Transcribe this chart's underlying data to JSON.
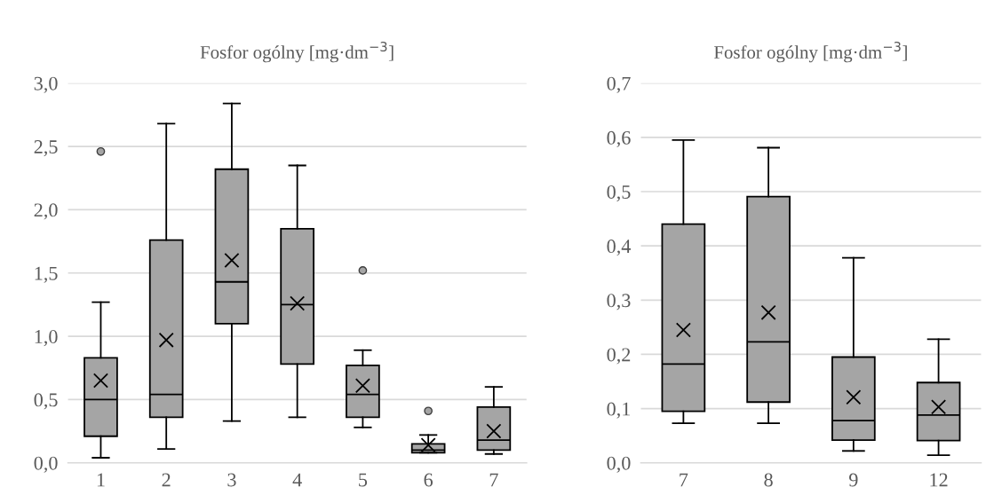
{
  "chart_data": [
    {
      "type": "box",
      "title": "Fosfor ogólny [mg·dm$^{−3}$]",
      "categories": [
        "1",
        "2",
        "3",
        "4",
        "5",
        "6",
        "7"
      ],
      "color": "#a5a5a5",
      "grid": "y",
      "marker": "cross",
      "boxes": [
        {
          "low": 0.04,
          "q1": 0.21,
          "median": 0.5,
          "q3": 0.83,
          "high": 1.27,
          "mean": 0.65,
          "outliers": [
            2.46
          ]
        },
        {
          "low": 0.11,
          "q1": 0.36,
          "median": 0.54,
          "q3": 1.76,
          "high": 2.68,
          "mean": 0.97
        },
        {
          "low": 0.33,
          "q1": 1.1,
          "median": 1.43,
          "q3": 2.32,
          "high": 2.84,
          "mean": 1.6
        },
        {
          "low": 0.36,
          "q1": 0.78,
          "median": 1.25,
          "q3": 1.85,
          "high": 2.35,
          "mean": 1.26
        },
        {
          "low": 0.28,
          "q1": 0.36,
          "median": 0.54,
          "q3": 0.77,
          "high": 0.89,
          "mean": 0.61,
          "outliers": [
            1.52
          ]
        },
        {
          "low": 0.08,
          "q1": 0.08,
          "median": 0.1,
          "q3": 0.15,
          "high": 0.22,
          "mean": 0.14,
          "outliers": [
            0.41
          ]
        },
        {
          "low": 0.07,
          "q1": 0.1,
          "median": 0.18,
          "q3": 0.44,
          "high": 0.6,
          "mean": 0.25
        }
      ],
      "ylim": [
        0,
        3
      ],
      "yticks": [
        {
          "value": 0,
          "label": "0,0"
        },
        {
          "value": 0.5,
          "label": "0,5"
        },
        {
          "value": 1,
          "label": "1,0"
        },
        {
          "value": 1.5,
          "label": "1,5"
        },
        {
          "value": 2,
          "label": "2,0"
        },
        {
          "value": 2.5,
          "label": "2,5"
        },
        {
          "value": 3,
          "label": "3,0"
        }
      ]
    },
    {
      "type": "box",
      "title": "Fosfor ogólny [mg·dm$^{−3}$]",
      "categories": [
        "7",
        "8",
        "9",
        "12"
      ],
      "color": "#a5a5a5",
      "grid": "y",
      "marker": "cross",
      "boxes": [
        {
          "low": 0.073,
          "q1": 0.095,
          "median": 0.182,
          "q3": 0.44,
          "high": 0.595,
          "mean": 0.245
        },
        {
          "low": 0.073,
          "q1": 0.112,
          "median": 0.223,
          "q3": 0.491,
          "high": 0.581,
          "mean": 0.277
        },
        {
          "low": 0.022,
          "q1": 0.042,
          "median": 0.078,
          "q3": 0.195,
          "high": 0.378,
          "mean": 0.121
        },
        {
          "low": 0.014,
          "q1": 0.041,
          "median": 0.088,
          "q3": 0.148,
          "high": 0.228,
          "mean": 0.103
        }
      ],
      "ylim": [
        0,
        0.7
      ],
      "yticks": [
        {
          "value": 0,
          "label": "0,0"
        },
        {
          "value": 0.1,
          "label": "0,1"
        },
        {
          "value": 0.2,
          "label": "0,2"
        },
        {
          "value": 0.3,
          "label": "0,3"
        },
        {
          "value": 0.4,
          "label": "0,4"
        },
        {
          "value": 0.5,
          "label": "0,5"
        },
        {
          "value": 0.6,
          "label": "0,6"
        },
        {
          "value": 0.7,
          "label": "0,7"
        }
      ]
    }
  ]
}
